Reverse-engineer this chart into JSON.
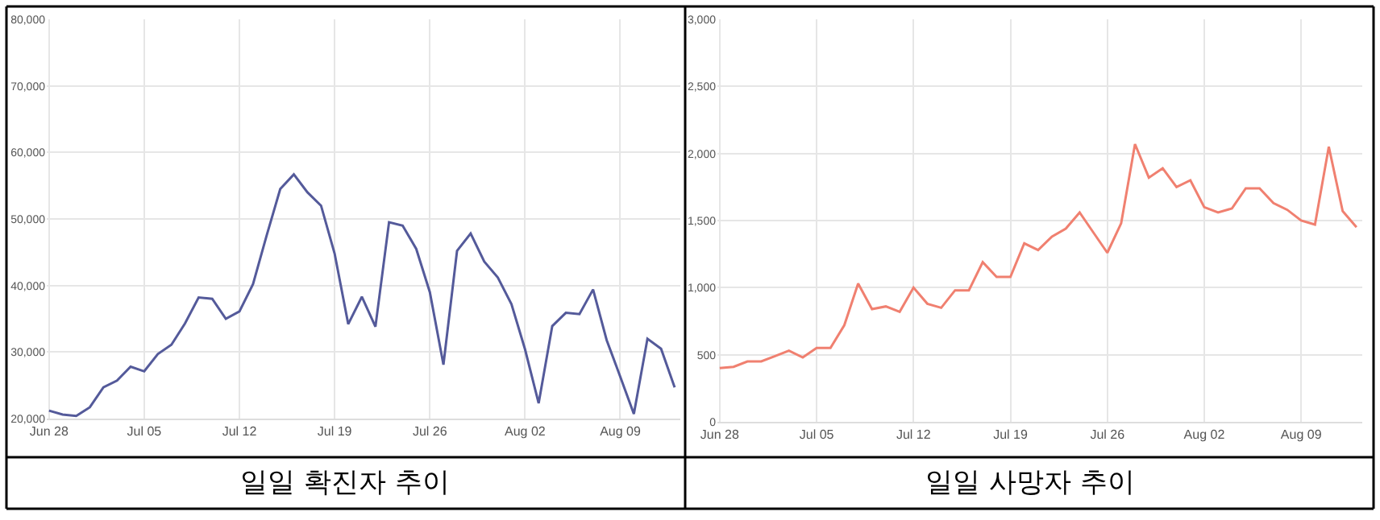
{
  "chart_data": [
    {
      "type": "line",
      "title": "일일 확진자 추이",
      "x": [
        "--06-28",
        "--06-29",
        "--06-30",
        "--07-01",
        "--07-02",
        "--07-03",
        "--07-04",
        "--07-05",
        "--07-06",
        "--07-07",
        "--07-08",
        "--07-09",
        "--07-10",
        "--07-11",
        "--07-12",
        "--07-13",
        "--07-14",
        "--07-15",
        "--07-16",
        "--07-17",
        "--07-18",
        "--07-19",
        "--07-20",
        "--07-21",
        "--07-22",
        "--07-23",
        "--07-24",
        "--07-25",
        "--07-26",
        "--07-27",
        "--07-28",
        "--07-29",
        "--07-30",
        "--07-31",
        "--08-01",
        "--08-02",
        "--08-03",
        "--08-04",
        "--08-05",
        "--08-06",
        "--08-07",
        "--08-08",
        "--08-09",
        "--08-10",
        "--08-11",
        "--08-12",
        "--08-13"
      ],
      "series": [
        {
          "color": "#545a9a",
          "values": [
            21200,
            20600,
            20400,
            21700,
            24700,
            25700,
            27800,
            27100,
            29700,
            31100,
            34300,
            38200,
            38000,
            35000,
            36100,
            40200,
            47500,
            54500,
            56700,
            54000,
            52000,
            44800,
            34200,
            38300,
            33800,
            49500,
            49000,
            45500,
            39000,
            28100,
            45200,
            47800,
            43600,
            41200,
            37200,
            30400,
            22300,
            33900,
            35900,
            35700,
            39400,
            31800,
            26300,
            20700,
            32000,
            30500,
            24700
          ]
        }
      ],
      "xticks": [
        {
          "value": "--06-28",
          "label": "Jun 28"
        },
        {
          "value": "--07-05",
          "label": "Jul 05"
        },
        {
          "value": "--07-12",
          "label": "Jul 12"
        },
        {
          "value": "--07-19",
          "label": "Jul 19"
        },
        {
          "value": "--07-26",
          "label": "Jul 26"
        },
        {
          "value": "--08-02",
          "label": "Aug 02"
        },
        {
          "value": "--08-09",
          "label": "Aug 09"
        }
      ],
      "xlim": [
        "--06-27T20:00",
        "--08-13T10:00"
      ],
      "ylim": [
        20000,
        80000
      ],
      "yticks": [
        {
          "value": 20000,
          "label": "20,000"
        },
        {
          "value": 30000,
          "label": "30,000"
        },
        {
          "value": 40000,
          "label": "40,000"
        },
        {
          "value": 50000,
          "label": "50,000"
        },
        {
          "value": 60000,
          "label": "60,000"
        },
        {
          "value": 70000,
          "label": "70,000"
        },
        {
          "value": 80000,
          "label": "80,000"
        }
      ],
      "grid": true,
      "marker": "none",
      "line_style": "solid"
    },
    {
      "type": "line",
      "title": "일일 사망자 추이",
      "x": [
        "--06-28",
        "--06-29",
        "--06-30",
        "--07-01",
        "--07-02",
        "--07-03",
        "--07-04",
        "--07-05",
        "--07-06",
        "--07-07",
        "--07-08",
        "--07-09",
        "--07-10",
        "--07-11",
        "--07-12",
        "--07-13",
        "--07-14",
        "--07-15",
        "--07-16",
        "--07-17",
        "--07-18",
        "--07-19",
        "--07-20",
        "--07-21",
        "--07-22",
        "--07-23",
        "--07-24",
        "--07-25",
        "--07-26",
        "--07-27",
        "--07-28",
        "--07-29",
        "--07-30",
        "--07-31",
        "--08-01",
        "--08-02",
        "--08-03",
        "--08-04",
        "--08-05",
        "--08-06",
        "--08-07",
        "--08-08",
        "--08-09",
        "--08-10",
        "--08-11",
        "--08-12",
        "--08-13"
      ],
      "series": [
        {
          "color": "#f08070",
          "values": [
            400,
            410,
            450,
            450,
            490,
            530,
            480,
            550,
            550,
            720,
            1030,
            840,
            860,
            820,
            1000,
            880,
            850,
            980,
            980,
            1190,
            1080,
            1080,
            1330,
            1280,
            1380,
            1440,
            1560,
            1410,
            1260,
            1480,
            2070,
            1820,
            1890,
            1750,
            1800,
            1600,
            1560,
            1590,
            1740,
            1740,
            1630,
            1580,
            1500,
            1470,
            2050,
            1570,
            1450
          ]
        }
      ],
      "xticks": [
        {
          "value": "--06-28",
          "label": "Jun 28"
        },
        {
          "value": "--07-05",
          "label": "Jul 05"
        },
        {
          "value": "--07-12",
          "label": "Jul 12"
        },
        {
          "value": "--07-19",
          "label": "Jul 19"
        },
        {
          "value": "--07-26",
          "label": "Jul 26"
        },
        {
          "value": "--08-02",
          "label": "Aug 02"
        },
        {
          "value": "--08-09",
          "label": "Aug 09"
        }
      ],
      "xlim": [
        "--06-27T20:00",
        "--08-13T10:00"
      ],
      "ylim": [
        0,
        3000
      ],
      "yticks": [
        {
          "value": 0,
          "label": "0"
        },
        {
          "value": 500,
          "label": "500"
        },
        {
          "value": 1000,
          "label": "1,000"
        },
        {
          "value": 1500,
          "label": "1,500"
        },
        {
          "value": 2000,
          "label": "2,000"
        },
        {
          "value": 2500,
          "label": "2,500"
        },
        {
          "value": 3000,
          "label": "3,000"
        }
      ],
      "grid": true,
      "marker": "none",
      "line_style": "solid"
    }
  ]
}
